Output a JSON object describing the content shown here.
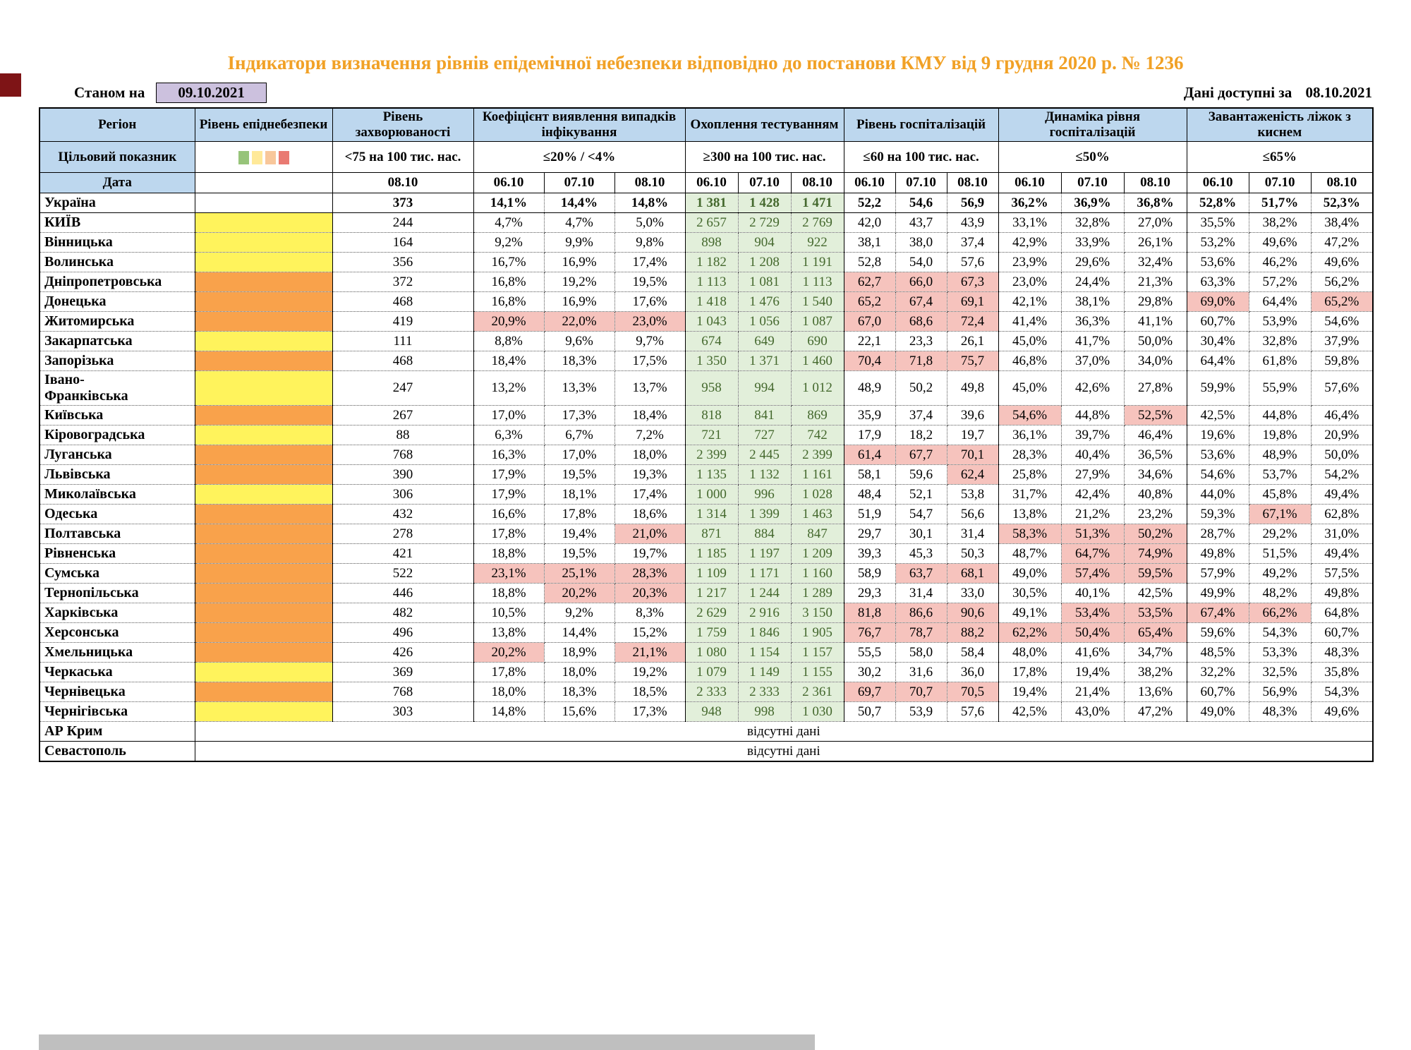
{
  "page": {
    "title": "Індикатори визначення рівнів епідемічної небезпеки відповідно до постанови КМУ від 9 грудня 2020 р. № 1236",
    "as_of_label": "Станом на",
    "as_of_date": "09.10.2021",
    "available_label": "Дані доступні за",
    "available_date": "08.10.2021"
  },
  "colors": {
    "title": "#F1A126",
    "header_bg": "#BDD7EE",
    "datebox_bg": "#CCC1DE",
    "level_yellow": "#FFF35C",
    "level_orange": "#F9A24B",
    "green_bg": "#E2EFDA",
    "green_text": "#44682D",
    "red_bg": "#F6C3BD",
    "legend": [
      "#97C47A",
      "#FFE999",
      "#F8C79B",
      "#E97A72"
    ]
  },
  "header": {
    "region": "Регіон",
    "danger": "Рівень епіднебезпеки",
    "target_label": "Цільовий показник",
    "date_label": "Дата",
    "groups": [
      {
        "label": "Рівень захворюваності",
        "target": "<75 на 100 тис. нас.",
        "dates": [
          "08.10"
        ]
      },
      {
        "label": "Коефіцієнт виявлення випадків інфікування",
        "target": "≤20% / <4%",
        "dates": [
          "06.10",
          "07.10",
          "08.10"
        ]
      },
      {
        "label": "Охоплення тестуванням",
        "target": "≥300 на 100 тис. нас.",
        "dates": [
          "06.10",
          "07.10",
          "08.10"
        ]
      },
      {
        "label": "Рівень госпіталізацій",
        "target": "≤60 на 100 тис. нас.",
        "dates": [
          "06.10",
          "07.10",
          "08.10"
        ]
      },
      {
        "label": "Динаміка рівня госпіталізацій",
        "target": "≤50%",
        "dates": [
          "06.10",
          "07.10",
          "08.10"
        ]
      },
      {
        "label": "Завантаженість ліжок з киснем",
        "target": "≤65%",
        "dates": [
          "06.10",
          "07.10",
          "08.10"
        ]
      }
    ]
  },
  "no_data_text": "відсутні дані",
  "no_data_rows": [
    "АР Крим",
    "Севастополь"
  ],
  "rows": [
    {
      "name": "Україна",
      "bold": true,
      "level": "",
      "inc": "373",
      "det": [
        "14,1%",
        "14,4%",
        "14,8%"
      ],
      "test": [
        "1 381",
        "1 428",
        "1 471"
      ],
      "hosp": [
        "52,2",
        "54,6",
        "56,9"
      ],
      "dyn": [
        "36,2%",
        "36,9%",
        "36,8%"
      ],
      "bed": [
        "52,8%",
        "51,7%",
        "52,3%"
      ]
    },
    {
      "name": "КИЇВ",
      "level": "yellow",
      "inc": "244",
      "det": [
        "4,7%",
        "4,7%",
        "5,0%"
      ],
      "test": [
        "2 657",
        "2 729",
        "2 769"
      ],
      "hosp": [
        "42,0",
        "43,7",
        "43,9"
      ],
      "dyn": [
        "33,1%",
        "32,8%",
        "27,0%"
      ],
      "bed": [
        "35,5%",
        "38,2%",
        "38,4%"
      ]
    },
    {
      "name": "Вінницька",
      "level": "yellow",
      "inc": "164",
      "det": [
        "9,2%",
        "9,9%",
        "9,8%"
      ],
      "test": [
        "898",
        "904",
        "922"
      ],
      "hosp": [
        "38,1",
        "38,0",
        "37,4"
      ],
      "dyn": [
        "42,9%",
        "33,9%",
        "26,1%"
      ],
      "bed": [
        "53,2%",
        "49,6%",
        "47,2%"
      ]
    },
    {
      "name": "Волинська",
      "level": "yellow",
      "inc": "356",
      "det": [
        "16,7%",
        "16,9%",
        "17,4%"
      ],
      "test": [
        "1 182",
        "1 208",
        "1 191"
      ],
      "hosp": [
        "52,8",
        "54,0",
        "57,6"
      ],
      "dyn": [
        "23,9%",
        "29,6%",
        "32,4%"
      ],
      "bed": [
        "53,6%",
        "46,2%",
        "49,6%"
      ]
    },
    {
      "name": "Дніпропетровська",
      "level": "orange",
      "inc": "372",
      "det": [
        "16,8%",
        "19,2%",
        "19,5%"
      ],
      "test": [
        "1 113",
        "1 081",
        "1 113"
      ],
      "hosp": [
        "62,7",
        "66,0",
        "67,3"
      ],
      "hosp_hl": [
        1,
        1,
        1
      ],
      "dyn": [
        "23,0%",
        "24,4%",
        "21,3%"
      ],
      "bed": [
        "63,3%",
        "57,2%",
        "56,2%"
      ]
    },
    {
      "name": "Донецька",
      "level": "orange",
      "inc": "468",
      "det": [
        "16,8%",
        "16,9%",
        "17,6%"
      ],
      "test": [
        "1 418",
        "1 476",
        "1 540"
      ],
      "hosp": [
        "65,2",
        "67,4",
        "69,1"
      ],
      "hosp_hl": [
        1,
        1,
        1
      ],
      "dyn": [
        "42,1%",
        "38,1%",
        "29,8%"
      ],
      "bed": [
        "69,0%",
        "64,4%",
        "65,2%"
      ],
      "bed_hl": [
        1,
        0,
        1
      ]
    },
    {
      "name": "Житомирська",
      "level": "orange",
      "inc": "419",
      "det": [
        "20,9%",
        "22,0%",
        "23,0%"
      ],
      "det_hl": [
        1,
        1,
        1
      ],
      "test": [
        "1 043",
        "1 056",
        "1 087"
      ],
      "hosp": [
        "67,0",
        "68,6",
        "72,4"
      ],
      "hosp_hl": [
        1,
        1,
        1
      ],
      "dyn": [
        "41,4%",
        "36,3%",
        "41,1%"
      ],
      "bed": [
        "60,7%",
        "53,9%",
        "54,6%"
      ]
    },
    {
      "name": "Закарпатська",
      "level": "yellow",
      "inc": "111",
      "det": [
        "8,8%",
        "9,6%",
        "9,7%"
      ],
      "test": [
        "674",
        "649",
        "690"
      ],
      "hosp": [
        "22,1",
        "23,3",
        "26,1"
      ],
      "dyn": [
        "45,0%",
        "41,7%",
        "50,0%"
      ],
      "bed": [
        "30,4%",
        "32,8%",
        "37,9%"
      ]
    },
    {
      "name": "Запорізька",
      "level": "orange",
      "inc": "468",
      "det": [
        "18,4%",
        "18,3%",
        "17,5%"
      ],
      "test": [
        "1 350",
        "1 371",
        "1 460"
      ],
      "hosp": [
        "70,4",
        "71,8",
        "75,7"
      ],
      "hosp_hl": [
        1,
        1,
        1
      ],
      "dyn": [
        "46,8%",
        "37,0%",
        "34,0%"
      ],
      "bed": [
        "64,4%",
        "61,8%",
        "59,8%"
      ]
    },
    {
      "name": "Івано-\nФранківська",
      "level": "yellow",
      "inc": "247",
      "det": [
        "13,2%",
        "13,3%",
        "13,7%"
      ],
      "test": [
        "958",
        "994",
        "1 012"
      ],
      "hosp": [
        "48,9",
        "50,2",
        "49,8"
      ],
      "dyn": [
        "45,0%",
        "42,6%",
        "27,8%"
      ],
      "bed": [
        "59,9%",
        "55,9%",
        "57,6%"
      ]
    },
    {
      "name": "Київська",
      "level": "orange",
      "inc": "267",
      "det": [
        "17,0%",
        "17,3%",
        "18,4%"
      ],
      "test": [
        "818",
        "841",
        "869"
      ],
      "hosp": [
        "35,9",
        "37,4",
        "39,6"
      ],
      "dyn": [
        "54,6%",
        "44,8%",
        "52,5%"
      ],
      "dyn_hl": [
        1,
        0,
        1
      ],
      "bed": [
        "42,5%",
        "44,8%",
        "46,4%"
      ]
    },
    {
      "name": "Кіровоградська",
      "level": "yellow",
      "inc": "88",
      "det": [
        "6,3%",
        "6,7%",
        "7,2%"
      ],
      "test": [
        "721",
        "727",
        "742"
      ],
      "hosp": [
        "17,9",
        "18,2",
        "19,7"
      ],
      "dyn": [
        "36,1%",
        "39,7%",
        "46,4%"
      ],
      "bed": [
        "19,6%",
        "19,8%",
        "20,9%"
      ]
    },
    {
      "name": "Луганська",
      "level": "orange",
      "inc": "768",
      "det": [
        "16,3%",
        "17,0%",
        "18,0%"
      ],
      "test": [
        "2 399",
        "2 445",
        "2 399"
      ],
      "hosp": [
        "61,4",
        "67,7",
        "70,1"
      ],
      "hosp_hl": [
        1,
        1,
        1
      ],
      "dyn": [
        "28,3%",
        "40,4%",
        "36,5%"
      ],
      "bed": [
        "53,6%",
        "48,9%",
        "50,0%"
      ]
    },
    {
      "name": "Львівська",
      "level": "orange",
      "inc": "390",
      "det": [
        "17,9%",
        "19,5%",
        "19,3%"
      ],
      "test": [
        "1 135",
        "1 132",
        "1 161"
      ],
      "hosp": [
        "58,1",
        "59,6",
        "62,4"
      ],
      "hosp_hl": [
        0,
        0,
        1
      ],
      "dyn": [
        "25,8%",
        "27,9%",
        "34,6%"
      ],
      "bed": [
        "54,6%",
        "53,7%",
        "54,2%"
      ]
    },
    {
      "name": "Миколаївська",
      "level": "yellow",
      "inc": "306",
      "det": [
        "17,9%",
        "18,1%",
        "17,4%"
      ],
      "test": [
        "1 000",
        "996",
        "1 028"
      ],
      "hosp": [
        "48,4",
        "52,1",
        "53,8"
      ],
      "dyn": [
        "31,7%",
        "42,4%",
        "40,8%"
      ],
      "bed": [
        "44,0%",
        "45,8%",
        "49,4%"
      ]
    },
    {
      "name": "Одеська",
      "level": "orange",
      "inc": "432",
      "det": [
        "16,6%",
        "17,8%",
        "18,6%"
      ],
      "test": [
        "1 314",
        "1 399",
        "1 463"
      ],
      "hosp": [
        "51,9",
        "54,7",
        "56,6"
      ],
      "dyn": [
        "13,8%",
        "21,2%",
        "23,2%"
      ],
      "bed": [
        "59,3%",
        "67,1%",
        "62,8%"
      ],
      "bed_hl": [
        0,
        1,
        0
      ]
    },
    {
      "name": "Полтавська",
      "level": "orange",
      "inc": "278",
      "det": [
        "17,8%",
        "19,4%",
        "21,0%"
      ],
      "det_hl": [
        0,
        0,
        1
      ],
      "test": [
        "871",
        "884",
        "847"
      ],
      "hosp": [
        "29,7",
        "30,1",
        "31,4"
      ],
      "dyn": [
        "58,3%",
        "51,3%",
        "50,2%"
      ],
      "dyn_hl": [
        1,
        1,
        1
      ],
      "bed": [
        "28,7%",
        "29,2%",
        "31,0%"
      ]
    },
    {
      "name": "Рівненська",
      "level": "orange",
      "inc": "421",
      "det": [
        "18,8%",
        "19,5%",
        "19,7%"
      ],
      "test": [
        "1 185",
        "1 197",
        "1 209"
      ],
      "hosp": [
        "39,3",
        "45,3",
        "50,3"
      ],
      "dyn": [
        "48,7%",
        "64,7%",
        "74,9%"
      ],
      "dyn_hl": [
        0,
        1,
        1
      ],
      "bed": [
        "49,8%",
        "51,5%",
        "49,4%"
      ]
    },
    {
      "name": "Сумська",
      "level": "orange",
      "inc": "522",
      "det": [
        "23,1%",
        "25,1%",
        "28,3%"
      ],
      "det_hl": [
        1,
        1,
        1
      ],
      "test": [
        "1 109",
        "1 171",
        "1 160"
      ],
      "hosp": [
        "58,9",
        "63,7",
        "68,1"
      ],
      "hosp_hl": [
        0,
        1,
        1
      ],
      "dyn": [
        "49,0%",
        "57,4%",
        "59,5%"
      ],
      "dyn_hl": [
        0,
        1,
        1
      ],
      "bed": [
        "57,9%",
        "49,2%",
        "57,5%"
      ]
    },
    {
      "name": "Тернопільська",
      "level": "orange",
      "inc": "446",
      "det": [
        "18,8%",
        "20,2%",
        "20,3%"
      ],
      "det_hl": [
        0,
        1,
        1
      ],
      "test": [
        "1 217",
        "1 244",
        "1 289"
      ],
      "hosp": [
        "29,3",
        "31,4",
        "33,0"
      ],
      "dyn": [
        "30,5%",
        "40,1%",
        "42,5%"
      ],
      "bed": [
        "49,9%",
        "48,2%",
        "49,8%"
      ]
    },
    {
      "name": "Харківська",
      "level": "orange",
      "inc": "482",
      "det": [
        "10,5%",
        "9,2%",
        "8,3%"
      ],
      "test": [
        "2 629",
        "2 916",
        "3 150"
      ],
      "hosp": [
        "81,8",
        "86,6",
        "90,6"
      ],
      "hosp_hl": [
        1,
        1,
        1
      ],
      "dyn": [
        "49,1%",
        "53,4%",
        "53,5%"
      ],
      "dyn_hl": [
        0,
        1,
        1
      ],
      "bed": [
        "67,4%",
        "66,2%",
        "64,8%"
      ],
      "bed_hl": [
        1,
        1,
        0
      ]
    },
    {
      "name": "Херсонська",
      "level": "orange",
      "inc": "496",
      "det": [
        "13,8%",
        "14,4%",
        "15,2%"
      ],
      "test": [
        "1 759",
        "1 846",
        "1 905"
      ],
      "hosp": [
        "76,7",
        "78,7",
        "88,2"
      ],
      "hosp_hl": [
        1,
        1,
        1
      ],
      "dyn": [
        "62,2%",
        "50,4%",
        "65,4%"
      ],
      "dyn_hl": [
        1,
        1,
        1
      ],
      "bed": [
        "59,6%",
        "54,3%",
        "60,7%"
      ]
    },
    {
      "name": "Хмельницька",
      "level": "orange",
      "inc": "426",
      "det": [
        "20,2%",
        "18,9%",
        "21,1%"
      ],
      "det_hl": [
        1,
        0,
        1
      ],
      "test": [
        "1 080",
        "1 154",
        "1 157"
      ],
      "hosp": [
        "55,5",
        "58,0",
        "58,4"
      ],
      "dyn": [
        "48,0%",
        "41,6%",
        "34,7%"
      ],
      "bed": [
        "48,5%",
        "53,3%",
        "48,3%"
      ]
    },
    {
      "name": "Черкаська",
      "level": "yellow",
      "inc": "369",
      "det": [
        "17,8%",
        "18,0%",
        "19,2%"
      ],
      "test": [
        "1 079",
        "1 149",
        "1 155"
      ],
      "hosp": [
        "30,2",
        "31,6",
        "36,0"
      ],
      "dyn": [
        "17,8%",
        "19,4%",
        "38,2%"
      ],
      "bed": [
        "32,2%",
        "32,5%",
        "35,8%"
      ]
    },
    {
      "name": "Чернівецька",
      "level": "orange",
      "inc": "768",
      "det": [
        "18,0%",
        "18,3%",
        "18,5%"
      ],
      "test": [
        "2 333",
        "2 333",
        "2 361"
      ],
      "hosp": [
        "69,7",
        "70,7",
        "70,5"
      ],
      "hosp_hl": [
        1,
        1,
        1
      ],
      "dyn": [
        "19,4%",
        "21,4%",
        "13,6%"
      ],
      "bed": [
        "60,7%",
        "56,9%",
        "54,3%"
      ]
    },
    {
      "name": "Чернігівська",
      "level": "yellow",
      "inc": "303",
      "det": [
        "14,8%",
        "15,6%",
        "17,3%"
      ],
      "test": [
        "948",
        "998",
        "1 030"
      ],
      "hosp": [
        "50,7",
        "53,9",
        "57,6"
      ],
      "dyn": [
        "42,5%",
        "43,0%",
        "47,2%"
      ],
      "bed": [
        "49,0%",
        "48,3%",
        "49,6%"
      ]
    }
  ]
}
